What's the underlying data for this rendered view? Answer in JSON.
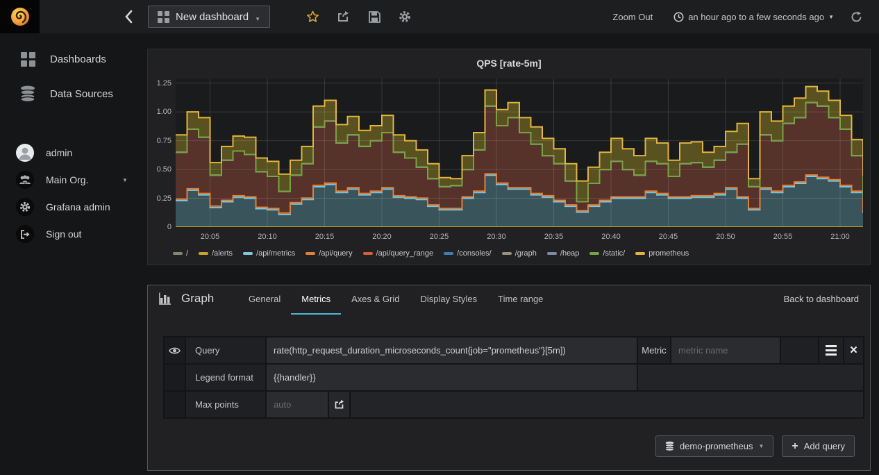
{
  "navbar": {
    "dashboard_title": "New dashboard",
    "zoom_out_label": "Zoom Out",
    "time_range_label": "an hour ago to a few seconds ago",
    "icons": [
      "grafana-logo",
      "collapse-sidebar",
      "star",
      "share",
      "save",
      "settings-gear",
      "clock",
      "refresh"
    ]
  },
  "sidebar": {
    "items": [
      {
        "label": "Dashboards",
        "icon": "dashboards-grid-icon"
      },
      {
        "label": "Data Sources",
        "icon": "database-icon"
      }
    ],
    "user_items": [
      {
        "label": "admin",
        "icon": "avatar"
      },
      {
        "label": "Main Org.",
        "icon": "org-users-icon"
      },
      {
        "label": "Grafana admin",
        "icon": "gear-icon"
      },
      {
        "label": "Sign out",
        "icon": "sign-out-icon"
      }
    ]
  },
  "chart_panel": {
    "title": "QPS [rate-5m]"
  },
  "chart_data": {
    "type": "area",
    "stacked": true,
    "title": "QPS [rate-5m]",
    "x_start": "20:02",
    "x_end": "21:02",
    "x_step_minutes": 1,
    "ylim": [
      0,
      1.25
    ],
    "grid": true,
    "legend_position": "bottom",
    "y_ticks": [
      {
        "label": "0",
        "v": 0
      },
      {
        "label": "0.25",
        "v": 0.25
      },
      {
        "label": "0.50",
        "v": 0.5
      },
      {
        "label": "0.75",
        "v": 0.75
      },
      {
        "label": "1.00",
        "v": 1.0
      },
      {
        "label": "1.25",
        "v": 1.25
      }
    ],
    "x_ticks": [
      {
        "label": "20:05",
        "minute": 3
      },
      {
        "label": "20:10",
        "minute": 8
      },
      {
        "label": "20:15",
        "minute": 13
      },
      {
        "label": "20:20",
        "minute": 18
      },
      {
        "label": "20:25",
        "minute": 23
      },
      {
        "label": "20:30",
        "minute": 28
      },
      {
        "label": "20:35",
        "minute": 33
      },
      {
        "label": "20:40",
        "minute": 38
      },
      {
        "label": "20:45",
        "minute": 43
      },
      {
        "label": "20:50",
        "minute": 48
      },
      {
        "label": "20:55",
        "minute": 53
      },
      {
        "label": "21:00",
        "minute": 58
      }
    ],
    "series": [
      {
        "name": "/",
        "color": "#7d8a6f",
        "value_const": 0
      },
      {
        "name": "/alerts",
        "color": "#c9a22d",
        "value_const": 0
      },
      {
        "name": "/api/metrics",
        "color": "#7fc8dc",
        "fill": "#3a545c",
        "values": [
          0.23,
          0.32,
          0.28,
          0.17,
          0.22,
          0.26,
          0.25,
          0.16,
          0.15,
          0.11,
          0.2,
          0.24,
          0.35,
          0.37,
          0.3,
          0.33,
          0.28,
          0.3,
          0.33,
          0.26,
          0.25,
          0.24,
          0.18,
          0.15,
          0.15,
          0.25,
          0.3,
          0.45,
          0.37,
          0.33,
          0.33,
          0.28,
          0.26,
          0.22,
          0.18,
          0.13,
          0.18,
          0.22,
          0.25,
          0.25,
          0.25,
          0.3,
          0.28,
          0.25,
          0.25,
          0.26,
          0.26,
          0.28,
          0.33,
          0.25,
          0.15,
          0.33,
          0.3,
          0.35,
          0.38,
          0.44,
          0.42,
          0.4,
          0.35,
          0.3,
          0.13
        ]
      },
      {
        "name": "/api/query",
        "color": "#e0813a",
        "value_const": 0.012
      },
      {
        "name": "/api/query_range",
        "color": "#d65f35",
        "fill": "#56322b",
        "values": [
          0.408,
          0.518,
          0.488,
          0.268,
          0.348,
          0.388,
          0.368,
          0.308,
          0.278,
          0.188,
          0.238,
          0.298,
          0.508,
          0.538,
          0.418,
          0.458,
          0.408,
          0.438,
          0.478,
          0.378,
          0.338,
          0.268,
          0.228,
          0.188,
          0.198,
          0.238,
          0.358,
          0.588,
          0.498,
          0.608,
          0.478,
          0.428,
          0.348,
          0.318,
          0.208,
          0.078,
          0.188,
          0.268,
          0.308,
          0.238,
          0.188,
          0.258,
          0.258,
          0.178,
          0.288,
          0.288,
          0.248,
          0.288,
          0.308,
          0.458,
          0.188,
          0.458,
          0.438,
          0.538,
          0.558,
          0.628,
          0.618,
          0.538,
          0.488,
          0.308,
          0.118
        ]
      },
      {
        "name": "/consoles/",
        "color": "#3f7eb5",
        "value_const": 0
      },
      {
        "name": "/graph",
        "color": "#97907f",
        "value_const": 0
      },
      {
        "name": "/heap",
        "color": "#7e8ba3",
        "value_const": 0
      },
      {
        "name": "/static/",
        "color": "#76a343",
        "value_const": 0
      },
      {
        "name": "prometheus",
        "color": "#e2b63c",
        "fill": "#59511f",
        "values": [
          0.15,
          0.15,
          0.17,
          0.11,
          0.12,
          0.13,
          0.15,
          0.12,
          0.13,
          0.15,
          0.13,
          0.15,
          0.18,
          0.18,
          0.16,
          0.16,
          0.14,
          0.13,
          0.15,
          0.15,
          0.15,
          0.15,
          0.13,
          0.08,
          0.06,
          0.12,
          0.15,
          0.14,
          0.14,
          0.13,
          0.13,
          0.15,
          0.15,
          0.13,
          0.15,
          0.18,
          0.14,
          0.15,
          0.2,
          0.18,
          0.17,
          0.2,
          0.18,
          0.14,
          0.18,
          0.18,
          0.13,
          0.12,
          0.18,
          0.18,
          0.07,
          0.2,
          0.17,
          0.15,
          0.17,
          0.14,
          0.13,
          0.15,
          0.12,
          0.14,
          0.19
        ]
      }
    ]
  },
  "editor": {
    "panel_type": "Graph",
    "tabs": [
      "General",
      "Metrics",
      "Axes & Grid",
      "Display Styles",
      "Time range"
    ],
    "active_tab": "Metrics",
    "back_link": "Back to dashboard",
    "query_row": {
      "label": "Query",
      "value": "rate(http_request_duration_microseconds_count{job=\"prometheus\"}[5m])",
      "metric_label": "Metric",
      "metric_placeholder": "metric name"
    },
    "legend_row": {
      "label": "Legend format",
      "value": "{{handler}}"
    },
    "max_points_row": {
      "label": "Max points",
      "placeholder": "auto"
    },
    "datasource_button": "demo-prometheus",
    "add_query_button": "Add query"
  }
}
